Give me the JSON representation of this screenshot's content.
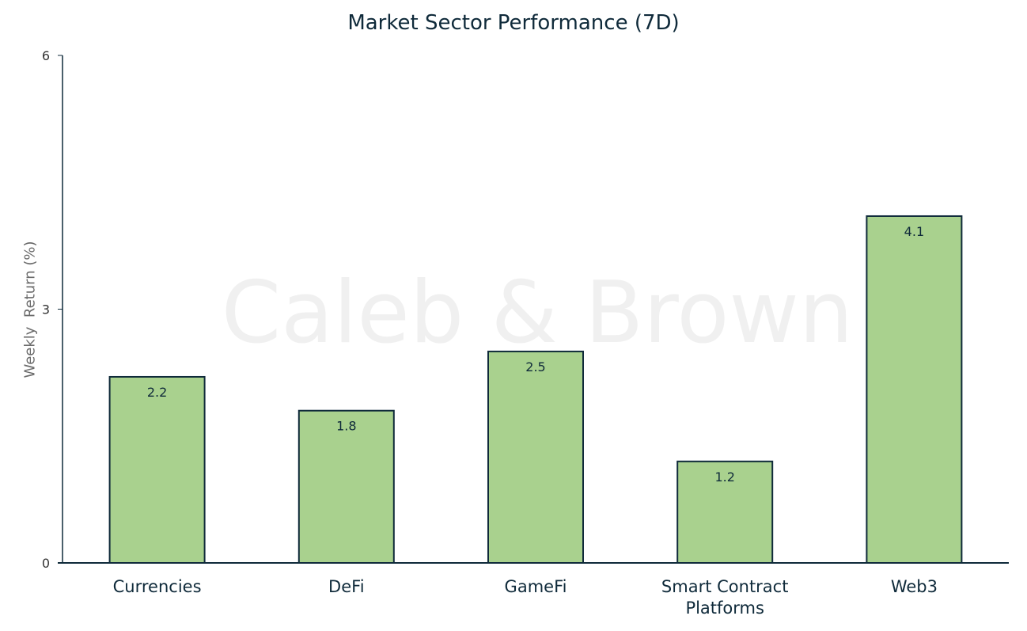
{
  "chart_data": {
    "type": "bar",
    "title": "Market Sector Performance (7D)",
    "xlabel": "",
    "ylabel": "Weekly  Return (%)",
    "categories": [
      "Currencies",
      "DeFi",
      "GameFi",
      "Smart Contract Platforms",
      "Web3"
    ],
    "category_lines": [
      [
        "Currencies"
      ],
      [
        "DeFi"
      ],
      [
        "GameFi"
      ],
      [
        "Smart Contract",
        "Platforms"
      ],
      [
        "Web3"
      ]
    ],
    "values": [
      2.2,
      1.8,
      2.5,
      1.2,
      4.1
    ],
    "data_labels": [
      "2.2",
      "1.8",
      "2.5",
      "1.2",
      "4.1"
    ],
    "ylim": [
      0,
      6
    ],
    "yticks": [
      0,
      3,
      6
    ],
    "grid": false,
    "legend": "none",
    "bar_color": "#a9d18e",
    "bar_edge_color": "#0f2a3a",
    "text_color": "#0f2a3a",
    "watermark": "Caleb & Brown",
    "watermark_color": "#f0f0f0"
  }
}
